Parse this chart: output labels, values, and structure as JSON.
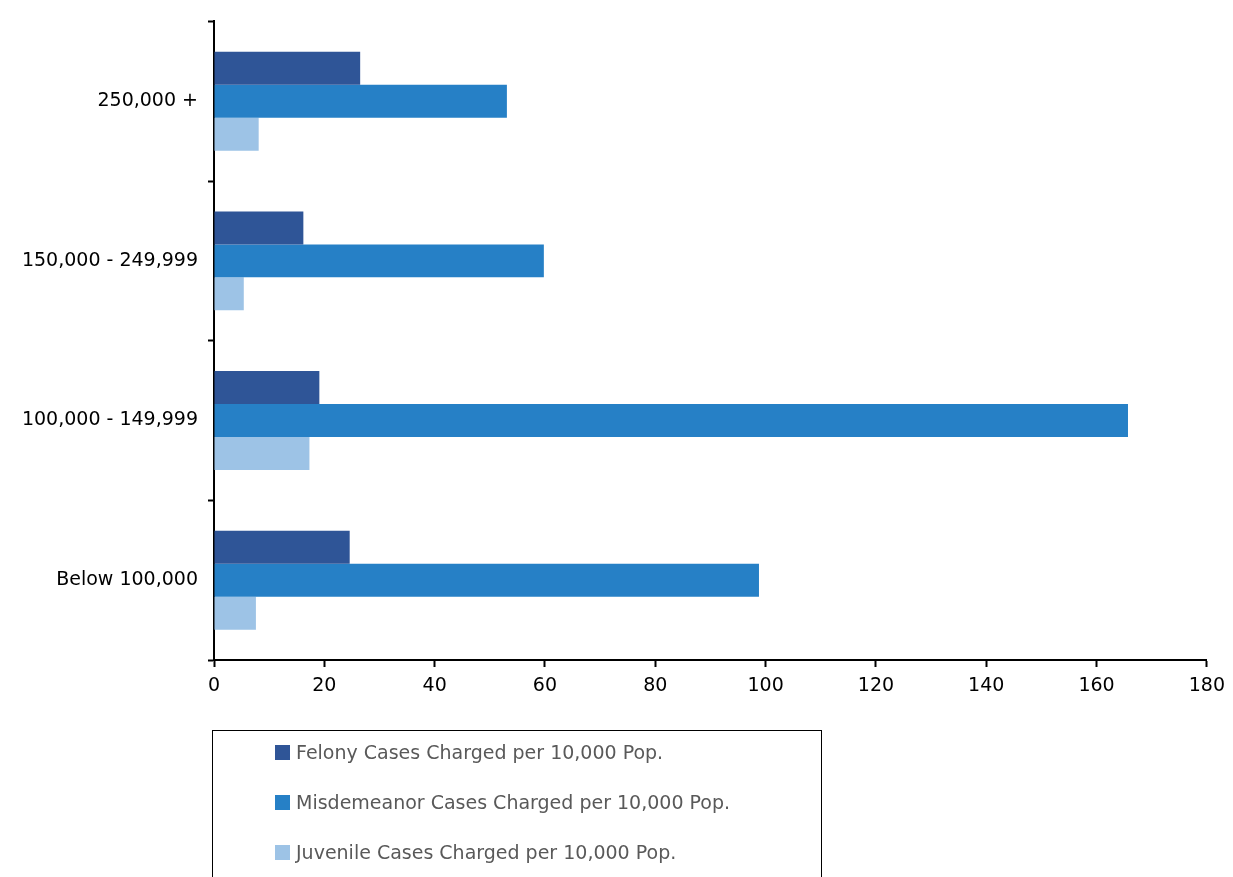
{
  "chart_data": {
    "type": "bar",
    "orientation": "horizontal",
    "categories": [
      "250,000 +",
      "150,000 - 249,999",
      "100,000 - 149,999",
      "Below 100,000"
    ],
    "series": [
      {
        "name": "Felony Cases Charged per 10,000 Pop.",
        "color": "#2f5597",
        "values": [
          26.5,
          16.2,
          19.1,
          24.6
        ]
      },
      {
        "name": "Misdemeanor Cases Charged per 10,000 Pop.",
        "color": "#2680c6",
        "values": [
          53.1,
          59.8,
          165.7,
          98.8
        ]
      },
      {
        "name": "Juvenile Cases Charged per 10,000 Pop.",
        "color": "#9dc3e6",
        "values": [
          8.1,
          5.4,
          17.3,
          7.6
        ]
      }
    ],
    "xlim": [
      0,
      180
    ],
    "xticks": [
      0,
      20,
      40,
      60,
      80,
      100,
      120,
      140,
      160,
      180
    ],
    "legend": "bottom"
  }
}
